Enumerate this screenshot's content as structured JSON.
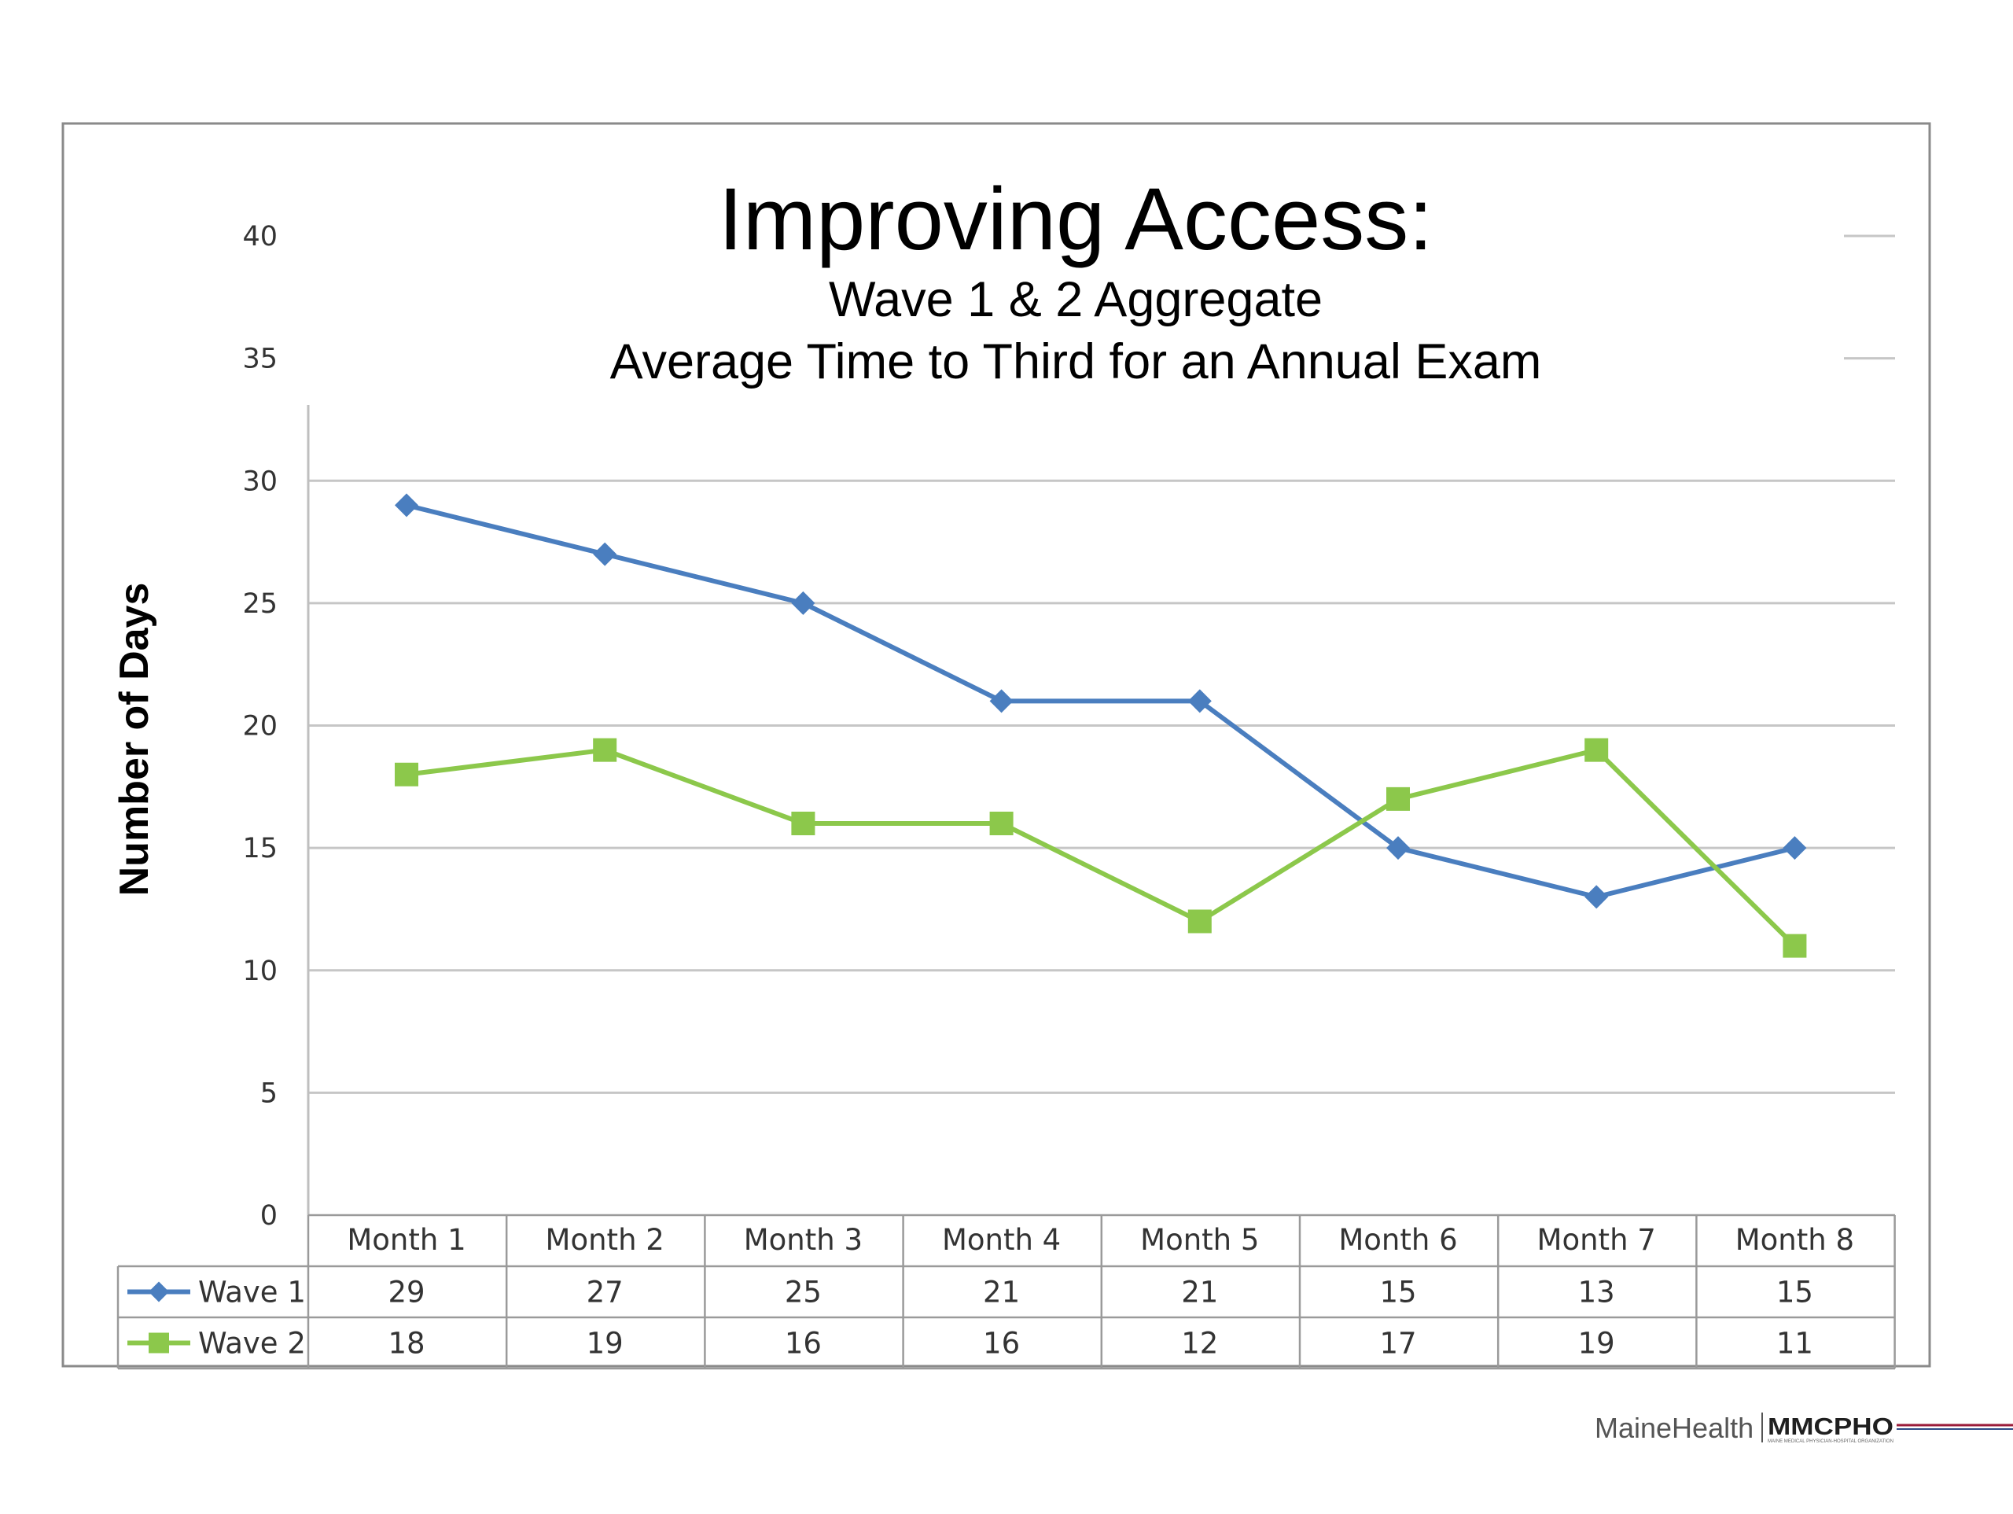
{
  "chart_data": {
    "type": "line",
    "title": "Improving Access:",
    "subtitle_lines": [
      "Wave 1 & 2 Aggregate",
      "Average Time to Third for an Annual Exam"
    ],
    "xlabel": "",
    "ylabel": "Number of Days",
    "ylim": [
      0,
      40
    ],
    "yticks": [
      0,
      5,
      10,
      15,
      20,
      25,
      30,
      35,
      40
    ],
    "grid": true,
    "legend": "data-table-below",
    "categories": [
      "Month 1",
      "Month 2",
      "Month 3",
      "Month 4",
      "Month 5",
      "Month 6",
      "Month 7",
      "Month 8"
    ],
    "series": [
      {
        "name": "Wave 1",
        "values": [
          29,
          27,
          25,
          21,
          21,
          15,
          13,
          15
        ],
        "color": "#4a7ebf",
        "marker": "diamond"
      },
      {
        "name": "Wave 2",
        "values": [
          18,
          19,
          16,
          16,
          12,
          17,
          19,
          11
        ],
        "color": "#8cc84b",
        "marker": "square"
      }
    ]
  },
  "footer": {
    "logo_left": "MaineHealth",
    "logo_right": "MMCPHO",
    "logo_right_tagline": "MAINE MEDICAL PHYSICIAN-HOSPITAL ORGANIZATION"
  }
}
